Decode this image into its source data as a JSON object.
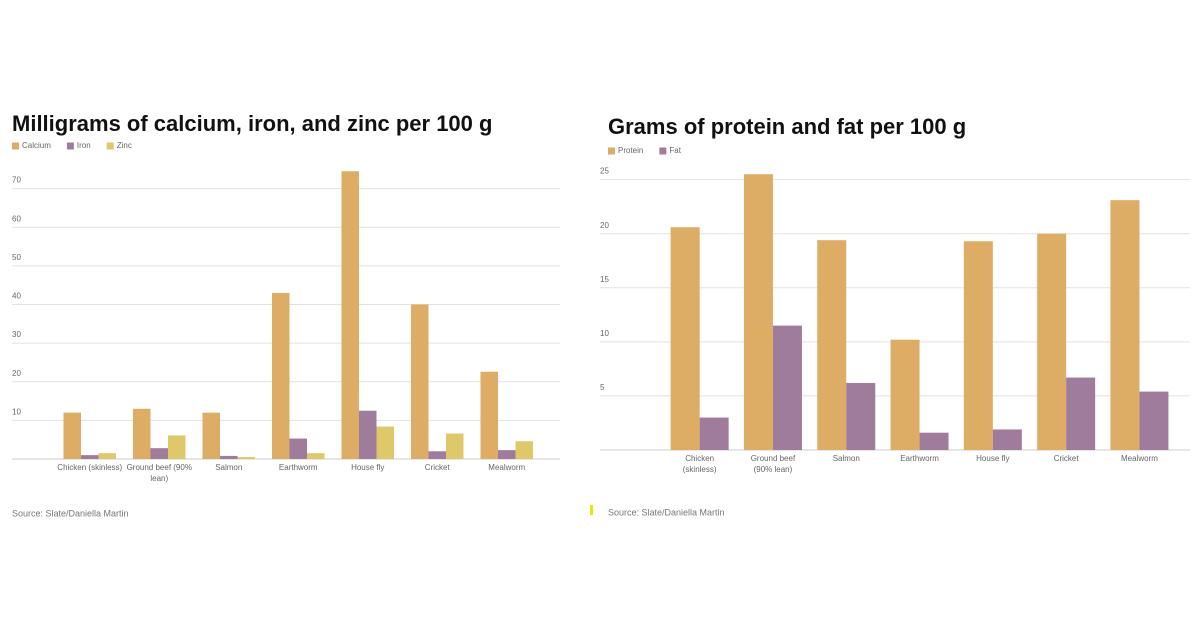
{
  "chart_data": [
    {
      "type": "bar",
      "title": "Milligrams of calcium, iron, and zinc per 100 g",
      "categories": [
        "Chicken (skinless)",
        "Ground beef (90% lean)",
        "Salmon",
        "Earthworm",
        "House fly",
        "Cricket",
        "Mealworm"
      ],
      "series": [
        {
          "name": "Calcium",
          "color": "#ddac65",
          "values": [
            12,
            13,
            12,
            43,
            74.5,
            40,
            22.6
          ]
        },
        {
          "name": "Iron",
          "color": "#a07c9c",
          "values": [
            1,
            2.8,
            0.8,
            5.3,
            12.5,
            2,
            2.3
          ]
        },
        {
          "name": "Zinc",
          "color": "#dfc86a",
          "values": [
            1.5,
            6.1,
            0.5,
            1.5,
            8.4,
            6.6,
            4.6
          ]
        }
      ],
      "ylim": [
        0,
        80
      ],
      "yticks": [
        10,
        20,
        30,
        40,
        50,
        60,
        70
      ],
      "grid": true,
      "legend": "top-left",
      "source": "Source: Slate/Daniella Martin"
    },
    {
      "type": "bar",
      "title": "Grams of protein and fat per 100 g",
      "categories": [
        "Chicken (skinless)",
        "Ground beef (90% lean)",
        "Salmon",
        "Earthworm",
        "House fly",
        "Cricket",
        "Mealworm"
      ],
      "series": [
        {
          "name": "Protein",
          "color": "#ddac65",
          "values": [
            20.6,
            25.5,
            19.4,
            10.2,
            19.3,
            20,
            23.1
          ]
        },
        {
          "name": "Fat",
          "color": "#a07c9c",
          "values": [
            3,
            11.5,
            6.2,
            1.6,
            1.9,
            6.7,
            5.4
          ]
        }
      ],
      "ylim": [
        0,
        27
      ],
      "yticks": [
        5,
        10,
        15,
        20,
        25
      ],
      "grid": true,
      "legend": "top-left",
      "source": "Source: Slate/Daniella Martin"
    }
  ]
}
